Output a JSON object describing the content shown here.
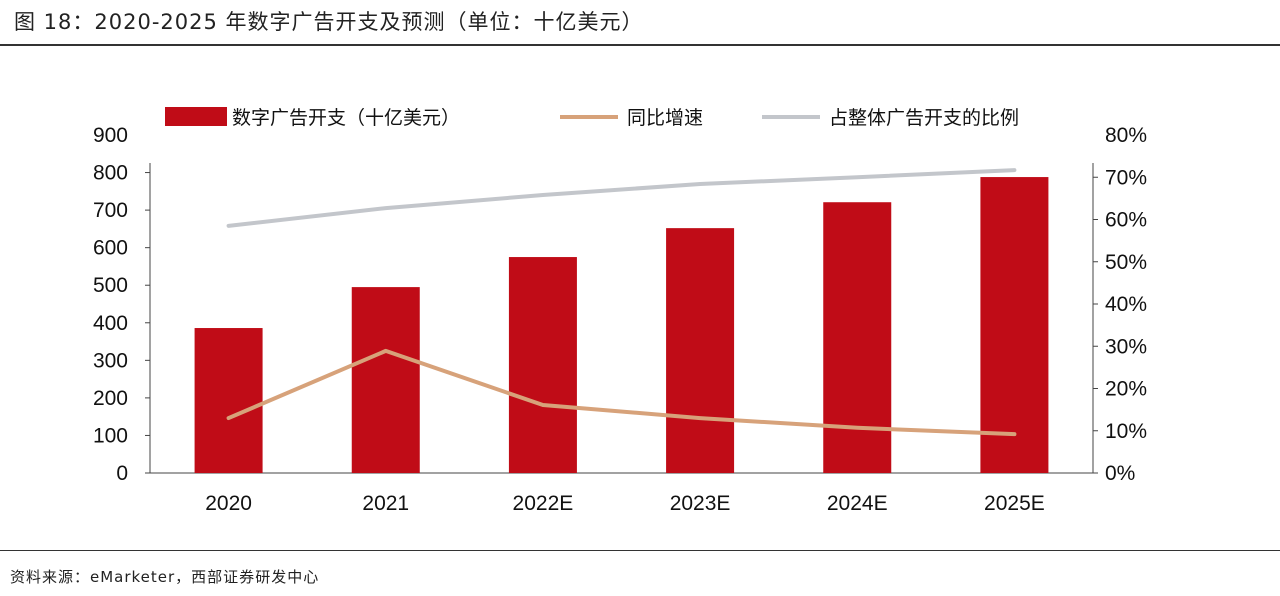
{
  "title": "图 18：2020-2025 年数字广告开支及预测（单位：十亿美元）",
  "source": "资料来源：eMarketer，西部证券研发中心",
  "chart_data": {
    "type": "bar",
    "title": "",
    "categories": [
      "2020",
      "2021",
      "2022E",
      "2023E",
      "2024E",
      "2025E"
    ],
    "left_axis": {
      "ylim": [
        0,
        900
      ],
      "ticks": [
        "0",
        "100",
        "200",
        "300",
        "400",
        "500",
        "600",
        "700",
        "800",
        "900"
      ]
    },
    "right_axis": {
      "ylim": [
        0,
        80
      ],
      "ticks": [
        "0%",
        "10%",
        "20%",
        "30%",
        "40%",
        "50%",
        "60%",
        "70%",
        "80%"
      ]
    },
    "grid": false,
    "legend_position": "top",
    "series": [
      {
        "name": "数字广告开支（十亿美元）",
        "type": "bar",
        "axis": "left",
        "color": "#c00c17",
        "values": [
          386,
          495,
          575,
          652,
          721,
          788
        ]
      },
      {
        "name": "同比增速",
        "type": "line",
        "axis": "right",
        "unit": "%",
        "color": "#d7a27a",
        "values": [
          13.0,
          28.9,
          16.1,
          13.0,
          10.7,
          9.2
        ]
      },
      {
        "name": "占整体广告开支的比例",
        "type": "line",
        "axis": "right",
        "unit": "%",
        "color": "#c3c6cb",
        "values": [
          58.5,
          62.7,
          65.8,
          68.4,
          70.0,
          71.7
        ]
      }
    ]
  }
}
